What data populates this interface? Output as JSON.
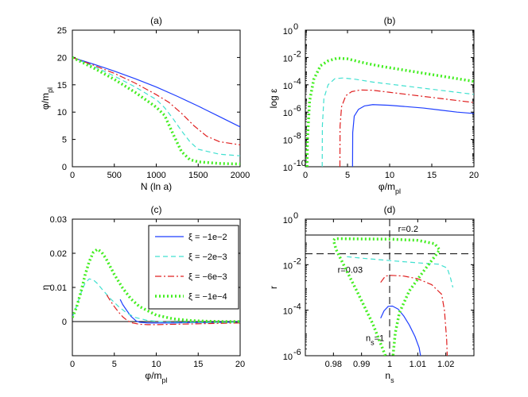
{
  "legend": {
    "entries": [
      {
        "label": "ξ = −1e−2",
        "color": "#1f3fff",
        "dash": "solid",
        "width": 1.2
      },
      {
        "label": "ξ = −2e−3",
        "color": "#40e0d0",
        "dash": "6,4",
        "width": 1.2
      },
      {
        "label": "ξ = −6e−3",
        "color": "#e02020",
        "dash": "8,3,2,3",
        "width": 1.2
      },
      {
        "label": "ξ = −1e−4",
        "color": "#44ee22",
        "dash": "2,3",
        "width": 3.5
      }
    ]
  },
  "chart_data": [
    {
      "panel": "a",
      "type": "line",
      "title": "(a)",
      "xlabel": "N (ln a)",
      "ylabel": "φ/m_pl",
      "xlim": [
        0,
        2000
      ],
      "ylim": [
        0,
        25
      ],
      "yscale": "linear",
      "xticks": [
        0,
        500,
        1000,
        1500,
        2000
      ],
      "xticklabels": [
        "0",
        "500",
        "1000",
        "1500",
        "2000"
      ],
      "yticks": [
        0,
        5,
        10,
        15,
        20,
        25
      ],
      "yticklabels": [
        "0",
        "5",
        "10",
        "15",
        "20",
        "25"
      ],
      "series": [
        {
          "legend_index": 0,
          "x": [
            0,
            250,
            500,
            750,
            1000,
            1250,
            1500,
            1750,
            2000
          ],
          "y": [
            20,
            18.8,
            17.5,
            16.1,
            14.6,
            12.9,
            11.1,
            9.2,
            7.3
          ]
        },
        {
          "legend_index": 1,
          "x": [
            0,
            250,
            500,
            750,
            1000,
            1100,
            1200,
            1300,
            1400,
            1500,
            1750,
            2000
          ],
          "y": [
            20,
            18.4,
            16.6,
            14.6,
            12.3,
            10.8,
            8.8,
            6.6,
            4.6,
            3.2,
            2.3,
            2.0
          ]
        },
        {
          "legend_index": 2,
          "x": [
            0,
            250,
            500,
            750,
            1000,
            1150,
            1300,
            1450,
            1600,
            1750,
            2000
          ],
          "y": [
            20,
            18.6,
            17.1,
            15.3,
            13.2,
            11.8,
            9.8,
            7.5,
            5.6,
            4.6,
            4.0
          ]
        },
        {
          "legend_index": 3,
          "x": [
            0,
            250,
            500,
            750,
            1000,
            1100,
            1200,
            1300,
            1400,
            1500,
            1750,
            2000
          ],
          "y": [
            20,
            18.1,
            16.0,
            13.6,
            10.9,
            9.4,
            6.0,
            2.8,
            1.3,
            0.9,
            0.6,
            0.5
          ]
        }
      ]
    },
    {
      "panel": "b",
      "type": "line",
      "title": "(b)",
      "xlabel": "φ/m_pl",
      "ylabel": "log ε",
      "xlim": [
        0,
        20
      ],
      "ylim": [
        -10,
        0
      ],
      "yscale": "log10",
      "xticks": [
        0,
        5,
        10,
        15,
        20
      ],
      "xticklabels": [
        "0",
        "5",
        "10",
        "15",
        "20"
      ],
      "yticks": [
        -10,
        -8,
        -6,
        -4,
        -2,
        0
      ],
      "yticklabels": [
        "10",
        "10",
        "10",
        "10",
        "10",
        "10"
      ],
      "ytickexponents": [
        "-10",
        "-8",
        "-6",
        "-4",
        "-2",
        "0"
      ],
      "series": [
        {
          "legend_index": 0,
          "x": [
            5.6,
            5.62,
            5.8,
            6.3,
            7.0,
            8.0,
            10,
            12,
            14,
            16,
            18,
            20
          ],
          "y": [
            -10,
            -7.5,
            -6.3,
            -5.8,
            -5.55,
            -5.45,
            -5.5,
            -5.6,
            -5.7,
            -5.85,
            -6.0,
            -6.1
          ]
        },
        {
          "legend_index": 1,
          "x": [
            2.0,
            2.02,
            2.2,
            2.7,
            3.5,
            4.5,
            6,
            8,
            10,
            12,
            14,
            16,
            18,
            20
          ],
          "y": [
            -10,
            -7.0,
            -5.0,
            -4.0,
            -3.55,
            -3.5,
            -3.6,
            -3.8,
            -3.95,
            -4.1,
            -4.25,
            -4.4,
            -4.55,
            -4.7
          ]
        },
        {
          "legend_index": 2,
          "x": [
            4.1,
            4.12,
            4.3,
            4.8,
            5.5,
            6.5,
            8,
            10,
            12,
            14,
            16,
            18,
            20
          ],
          "y": [
            -10,
            -7.0,
            -5.6,
            -4.8,
            -4.5,
            -4.38,
            -4.4,
            -4.55,
            -4.7,
            -4.85,
            -5.0,
            -5.15,
            -5.3
          ]
        },
        {
          "legend_index": 3,
          "x": [
            0.2,
            0.25,
            0.5,
            1.0,
            1.8,
            2.7,
            3.8,
            5,
            7,
            9,
            11,
            13,
            15,
            17,
            20
          ],
          "y": [
            -10,
            -8.0,
            -5.2,
            -3.6,
            -2.6,
            -2.25,
            -2.05,
            -2.1,
            -2.4,
            -2.65,
            -2.85,
            -3.05,
            -3.25,
            -3.45,
            -3.75
          ]
        }
      ]
    },
    {
      "panel": "c",
      "type": "line",
      "title": "(c)",
      "xlabel": "φ/m_pl",
      "ylabel": "η",
      "xlim": [
        0,
        20
      ],
      "ylim": [
        -0.01,
        0.03
      ],
      "yscale": "linear",
      "xticks": [
        0,
        5,
        10,
        15,
        20
      ],
      "xticklabels": [
        "0",
        "5",
        "10",
        "15",
        "20"
      ],
      "yticks": [
        0,
        0.01,
        0.02,
        0.03
      ],
      "yticklabels": [
        "0",
        "0.01",
        "0.02",
        "0.03"
      ],
      "hline": 0,
      "series": [
        {
          "legend_index": 0,
          "x": [
            5.7,
            6.0,
            6.5,
            7.0,
            7.6,
            8.0,
            9,
            10,
            12,
            14,
            16,
            18,
            20
          ],
          "y": [
            0.0065,
            0.005,
            0.0032,
            0.0015,
            0.0002,
            -0.0002,
            -0.0004,
            -0.0004,
            -0.0004,
            -0.0003,
            -0.0003,
            -0.0002,
            -0.0002
          ]
        },
        {
          "legend_index": 1,
          "x": [
            0,
            0.5,
            1.0,
            1.5,
            2.0,
            2.5,
            3.0,
            3.5,
            4.5,
            5.5,
            6.5,
            7.5,
            9,
            11,
            13,
            15,
            17,
            20
          ],
          "y": [
            0.0012,
            0.0045,
            0.0082,
            0.0112,
            0.0125,
            0.0122,
            0.0111,
            0.0096,
            0.0068,
            0.0044,
            0.0025,
            0.0012,
            0.0003,
            -0.0001,
            -0.0002,
            -0.0002,
            -0.0002,
            -0.0002
          ]
        },
        {
          "legend_index": 2,
          "x": [
            4.1,
            4.5,
            5.0,
            5.5,
            6.0,
            6.5,
            7.0,
            8,
            9,
            10,
            12,
            14,
            16,
            18,
            20
          ],
          "y": [
            0.0078,
            0.0062,
            0.0044,
            0.0028,
            0.0014,
            0.0004,
            -0.0003,
            -0.0008,
            -0.0009,
            -0.0009,
            -0.0008,
            -0.0007,
            -0.0006,
            -0.0005,
            -0.0004
          ]
        },
        {
          "legend_index": 3,
          "x": [
            0,
            0.5,
            1.0,
            1.5,
            2.0,
            2.5,
            3.0,
            3.5,
            4.0,
            5.0,
            6.0,
            7.0,
            8.0,
            10,
            12,
            14,
            16,
            18,
            20
          ],
          "y": [
            0.0012,
            0.0042,
            0.0085,
            0.0135,
            0.0175,
            0.0203,
            0.0212,
            0.0203,
            0.0185,
            0.0138,
            0.0098,
            0.0066,
            0.0044,
            0.0019,
            0.0008,
            0.0003,
            0.0001,
            0.0,
            0.0
          ]
        }
      ]
    },
    {
      "panel": "d",
      "type": "line",
      "title": "(d)",
      "xlabel": "n_s",
      "ylabel": "r",
      "xlim": [
        0.97,
        1.03
      ],
      "ylim": [
        -6,
        0
      ],
      "yscale": "log10",
      "xticks": [
        0.98,
        0.99,
        1.0,
        1.01,
        1.02
      ],
      "xticklabels": [
        "0.98",
        "0.99",
        "1",
        "1.01",
        "1.02"
      ],
      "yticks": [
        -6,
        -4,
        -2,
        0
      ],
      "yticklabels": [
        "10",
        "10",
        "10",
        "10"
      ],
      "ytickexponents": [
        "-6",
        "-4",
        "-2",
        "0"
      ],
      "hlines": [
        {
          "y": -0.699,
          "style": "solid",
          "label": "r=0.2",
          "label_x": 1.003
        },
        {
          "y": -1.523,
          "style": "dashed",
          "label": "r=0.03",
          "label_x": 0.9815
        }
      ],
      "vline": {
        "x": 1.0,
        "style": "dashed"
      },
      "annotation": {
        "label": "n",
        "sub": "s",
        "tail": "=1",
        "x": 0.9915,
        "y": -5.0
      },
      "series": [
        {
          "legend_index": 0,
          "x": [
            0.9968,
            0.998,
            0.9995,
            1.001,
            1.003,
            1.005,
            1.007,
            1.009,
            1.0105,
            1.011
          ],
          "y": [
            -4.35,
            -4.03,
            -3.83,
            -3.82,
            -3.95,
            -4.25,
            -4.65,
            -5.15,
            -5.65,
            -6.0
          ]
        },
        {
          "legend_index": 1,
          "x": [
            0.9848,
            0.9905,
            1.0,
            1.01,
            1.0175,
            1.0205,
            1.0217,
            1.0225
          ],
          "y": [
            -1.65,
            -1.72,
            -1.82,
            -1.92,
            -1.98,
            -2.15,
            -2.6,
            -3.0
          ]
        },
        {
          "legend_index": 2,
          "x": [
            0.9968,
            0.9985,
            1.0005,
            1.005,
            1.01,
            1.015,
            1.0185,
            1.0195,
            1.0203,
            1.0205
          ],
          "y": [
            -2.78,
            -2.5,
            -2.47,
            -2.5,
            -2.62,
            -2.88,
            -3.3,
            -4.0,
            -5.3,
            -6.0
          ]
        },
        {
          "legend_index": 3,
          "x": [
            0.9985,
            0.994,
            0.9885,
            0.984,
            0.981,
            0.98,
            0.9805,
            0.983,
            0.99,
            1.0,
            1.01,
            1.016,
            1.0178,
            1.016,
            1.012,
            1.007,
            1.0035,
            1.002,
            1.0012
          ],
          "y": [
            -6.0,
            -4.6,
            -3.2,
            -2.1,
            -1.35,
            -0.93,
            -0.86,
            -0.86,
            -0.87,
            -0.88,
            -0.93,
            -1.08,
            -1.35,
            -1.65,
            -2.3,
            -3.15,
            -4.1,
            -5.0,
            -6.0
          ]
        }
      ]
    }
  ]
}
